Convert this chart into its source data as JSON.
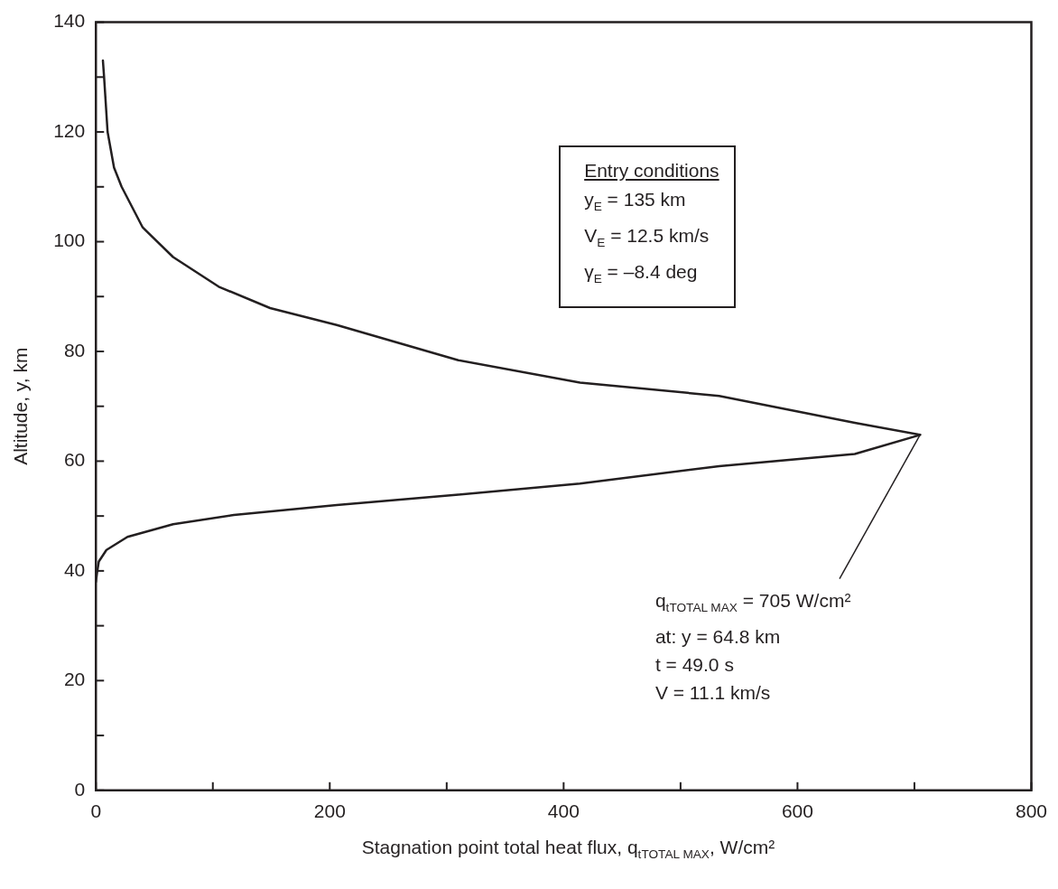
{
  "chart_data": {
    "type": "line",
    "xlabel": "Stagnation point total heat flux, q$_{tTOTAL MAX}$, W/cm²",
    "ylabel": "Altitude, y, km",
    "xlim": [
      0,
      800
    ],
    "ylim": [
      0,
      140
    ],
    "xticks": [
      0,
      {
        "value": 100,
        "label": null
      },
      200,
      {
        "value": 300,
        "label": null
      },
      400,
      {
        "value": 500,
        "label": null
      },
      600,
      {
        "value": 700,
        "label": null
      },
      800
    ],
    "yticks": [
      0,
      {
        "value": 10,
        "label": null
      },
      20,
      {
        "value": 30,
        "label": null
      },
      40,
      {
        "value": 50,
        "label": null
      },
      60,
      {
        "value": 70,
        "label": null
      },
      80,
      {
        "value": 90,
        "label": null
      },
      100,
      {
        "value": 110,
        "label": null
      },
      120,
      {
        "value": 130,
        "label": null
      },
      140
    ],
    "grid": false,
    "legend": false,
    "marker": "none",
    "line_style": "solid",
    "series": [
      {
        "color": "#231f20",
        "x": [
          6,
          7,
          10,
          15.5,
          22,
          40,
          66,
          105,
          149,
          206,
          310,
          414,
          533,
          649,
          705,
          649,
          533,
          414,
          310,
          206,
          118,
          66,
          27,
          9,
          2.5,
          1,
          0
        ],
        "values": [
          133,
          130,
          120,
          113.5,
          110,
          102.6,
          97.2,
          91.8,
          87.9,
          84.8,
          78.4,
          74.3,
          71.9,
          67,
          64.8,
          61.3,
          59.1,
          55.9,
          53.9,
          52,
          50.2,
          48.5,
          46.2,
          43.8,
          41.7,
          39.7,
          38
        ]
      }
    ],
    "annotations": [
      "Entry conditions",
      "y$_{E}$ = 135 km",
      "V$_{E}$ = 12.5 km/s",
      "γ$_{E}$ = –8.4 deg",
      {
        "text": "q$_{tTOTAL MAX}$ = 705 W/cm²\nat: y = 64.8 km\nt = 49.0 s\nV = 11.1 km/s",
        "x": 705,
        "y": 64.8
      }
    ]
  }
}
